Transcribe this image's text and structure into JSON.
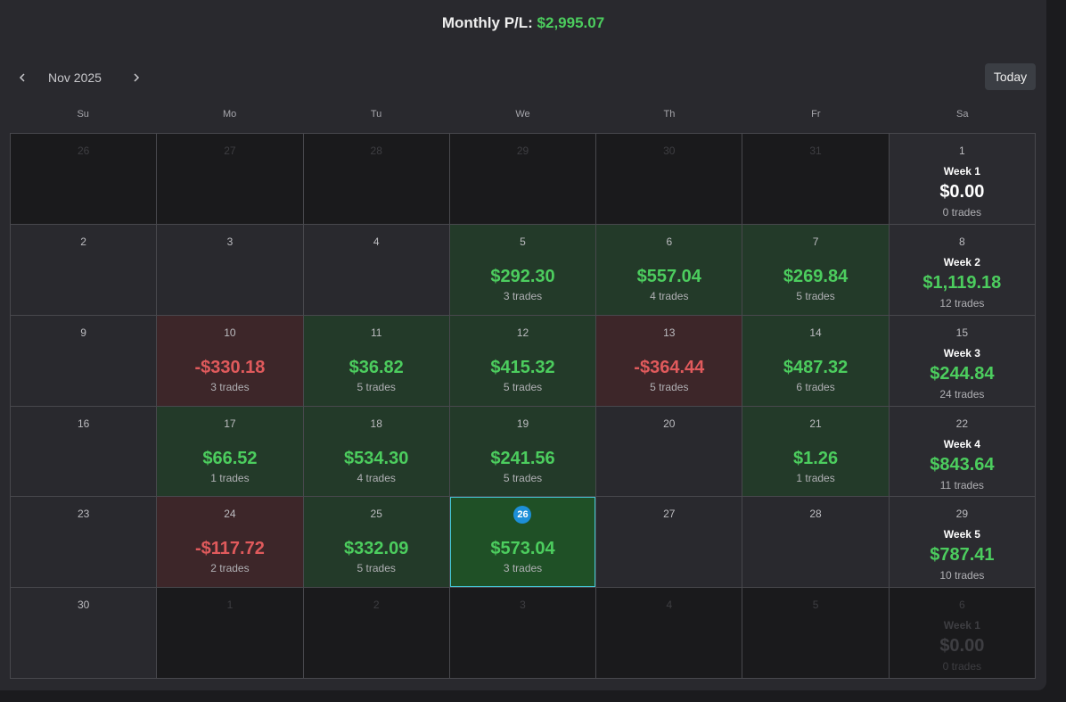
{
  "header": {
    "title_label": "Monthly P/L:",
    "title_amount": "$2,995.07"
  },
  "nav": {
    "month": "Nov 2025",
    "today_label": "Today"
  },
  "icons": {
    "prev": "chevron-left-icon",
    "next": "chevron-right-icon"
  },
  "colors": {
    "profit": "#4ccd5e",
    "loss": "#e05a5c",
    "accent": "#1d8fd8",
    "today_border": "#43c3d2"
  },
  "days_of_week": [
    "Su",
    "Mo",
    "Tu",
    "We",
    "Th",
    "Fr",
    "Sa"
  ],
  "weeks": [
    {
      "days": [
        {
          "day": "26",
          "muted": true
        },
        {
          "day": "27",
          "muted": true
        },
        {
          "day": "28",
          "muted": true
        },
        {
          "day": "29",
          "muted": true
        },
        {
          "day": "30",
          "muted": true
        },
        {
          "day": "31",
          "muted": true
        }
      ],
      "summary": {
        "day": "1",
        "label": "Week 1",
        "pl": "$0.00",
        "trades": "0 trades",
        "status": "zero",
        "muted": false
      }
    },
    {
      "days": [
        {
          "day": "2"
        },
        {
          "day": "3"
        },
        {
          "day": "4"
        },
        {
          "day": "5",
          "pl": "$292.30",
          "trades": "3 trades",
          "status": "profit"
        },
        {
          "day": "6",
          "pl": "$557.04",
          "trades": "4 trades",
          "status": "profit"
        },
        {
          "day": "7",
          "pl": "$269.84",
          "trades": "5 trades",
          "status": "profit"
        }
      ],
      "summary": {
        "day": "8",
        "label": "Week 2",
        "pl": "$1,119.18",
        "trades": "12 trades",
        "status": "profit",
        "muted": false
      }
    },
    {
      "days": [
        {
          "day": "9"
        },
        {
          "day": "10",
          "pl": "-$330.18",
          "trades": "3 trades",
          "status": "loss"
        },
        {
          "day": "11",
          "pl": "$36.82",
          "trades": "5 trades",
          "status": "profit"
        },
        {
          "day": "12",
          "pl": "$415.32",
          "trades": "5 trades",
          "status": "profit"
        },
        {
          "day": "13",
          "pl": "-$364.44",
          "trades": "5 trades",
          "status": "loss"
        },
        {
          "day": "14",
          "pl": "$487.32",
          "trades": "6 trades",
          "status": "profit"
        }
      ],
      "summary": {
        "day": "15",
        "label": "Week 3",
        "pl": "$244.84",
        "trades": "24 trades",
        "status": "profit",
        "muted": false
      }
    },
    {
      "days": [
        {
          "day": "16"
        },
        {
          "day": "17",
          "pl": "$66.52",
          "trades": "1 trades",
          "status": "profit"
        },
        {
          "day": "18",
          "pl": "$534.30",
          "trades": "4 trades",
          "status": "profit"
        },
        {
          "day": "19",
          "pl": "$241.56",
          "trades": "5 trades",
          "status": "profit"
        },
        {
          "day": "20"
        },
        {
          "day": "21",
          "pl": "$1.26",
          "trades": "1 trades",
          "status": "profit"
        }
      ],
      "summary": {
        "day": "22",
        "label": "Week 4",
        "pl": "$843.64",
        "trades": "11 trades",
        "status": "profit",
        "muted": false
      }
    },
    {
      "days": [
        {
          "day": "23"
        },
        {
          "day": "24",
          "pl": "-$117.72",
          "trades": "2 trades",
          "status": "loss"
        },
        {
          "day": "25",
          "pl": "$332.09",
          "trades": "5 trades",
          "status": "profit"
        },
        {
          "day": "26",
          "pl": "$573.04",
          "trades": "3 trades",
          "status": "profit",
          "today": true
        },
        {
          "day": "27"
        },
        {
          "day": "28"
        }
      ],
      "summary": {
        "day": "29",
        "label": "Week 5",
        "pl": "$787.41",
        "trades": "10 trades",
        "status": "profit",
        "muted": false
      }
    },
    {
      "days": [
        {
          "day": "30"
        },
        {
          "day": "1",
          "muted": true
        },
        {
          "day": "2",
          "muted": true
        },
        {
          "day": "3",
          "muted": true
        },
        {
          "day": "4",
          "muted": true
        },
        {
          "day": "5",
          "muted": true
        }
      ],
      "summary": {
        "day": "6",
        "label": "Week 1",
        "pl": "$0.00",
        "trades": "0 trades",
        "status": "zero",
        "muted": true
      }
    }
  ]
}
